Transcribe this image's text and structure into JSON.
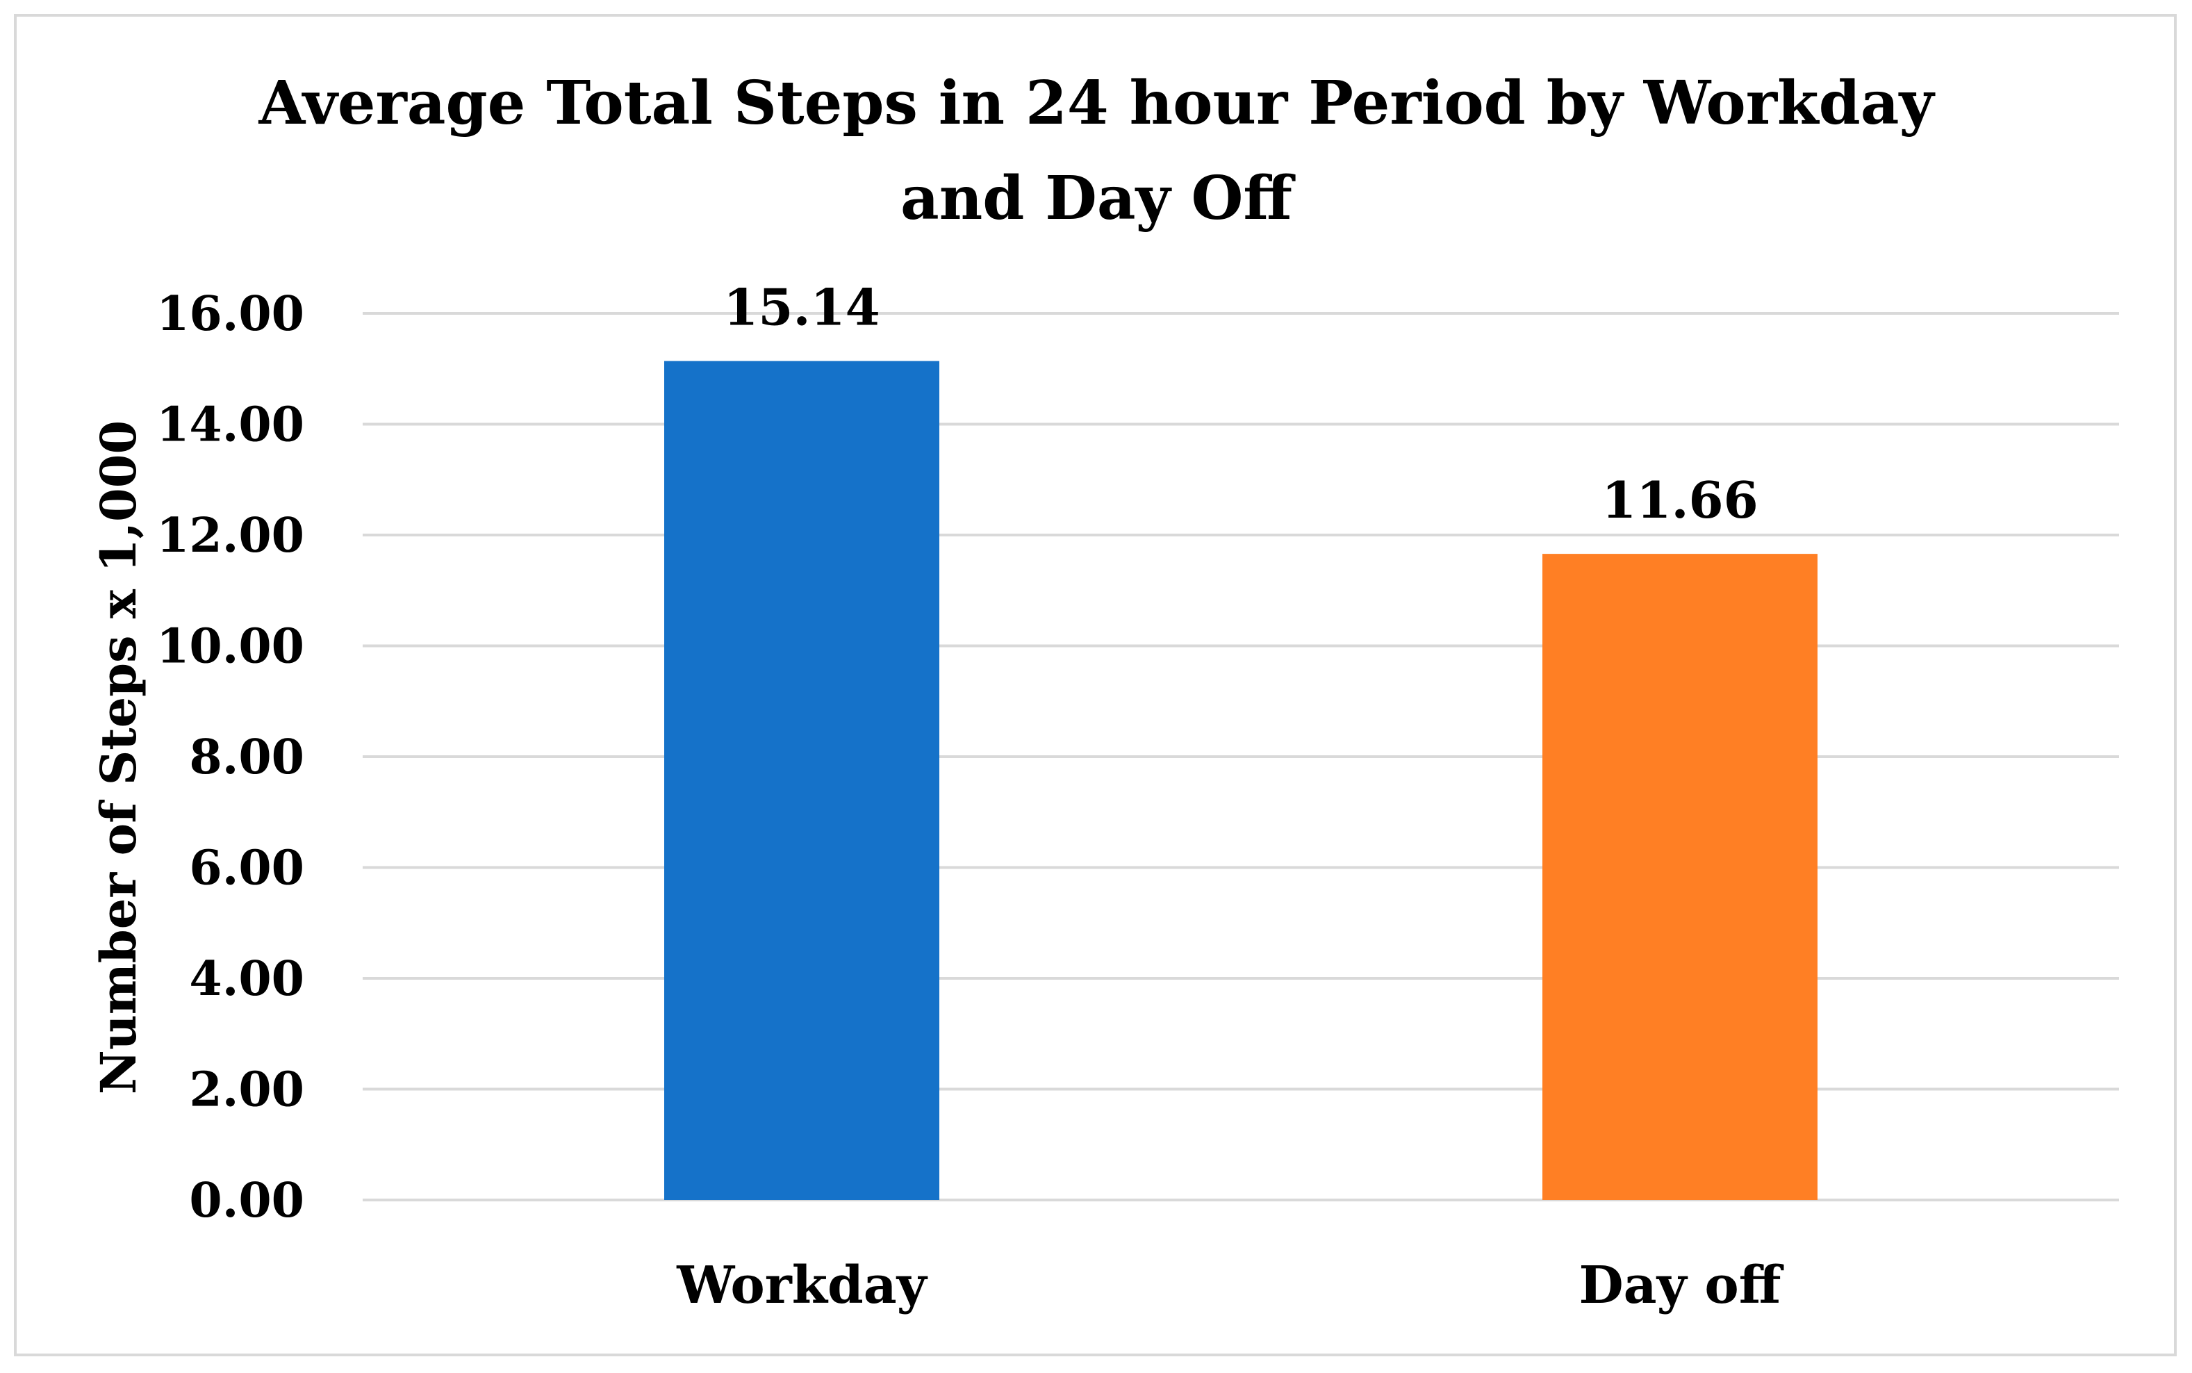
{
  "chart_data": {
    "type": "bar",
    "title_lines": [
      "Average Total Steps in 24 hour Period by Workday",
      "and Day Off"
    ],
    "ylabel": "Number of Steps x 1,000",
    "xlabel": "",
    "categories": [
      "Workday",
      "Day off"
    ],
    "values": [
      15.14,
      11.66
    ],
    "data_labels": [
      "15.14",
      "11.66"
    ],
    "colors": [
      "#1572C9",
      "#FF7F24"
    ],
    "ylim": [
      0,
      16
    ],
    "yticks": [
      0,
      2,
      4,
      6,
      8,
      10,
      12,
      14,
      16
    ],
    "ytick_labels": [
      "0.00",
      "2.00",
      "4.00",
      "6.00",
      "8.00",
      "10.00",
      "12.00",
      "14.00",
      "16.00"
    ],
    "grid": true,
    "legend": "none"
  }
}
